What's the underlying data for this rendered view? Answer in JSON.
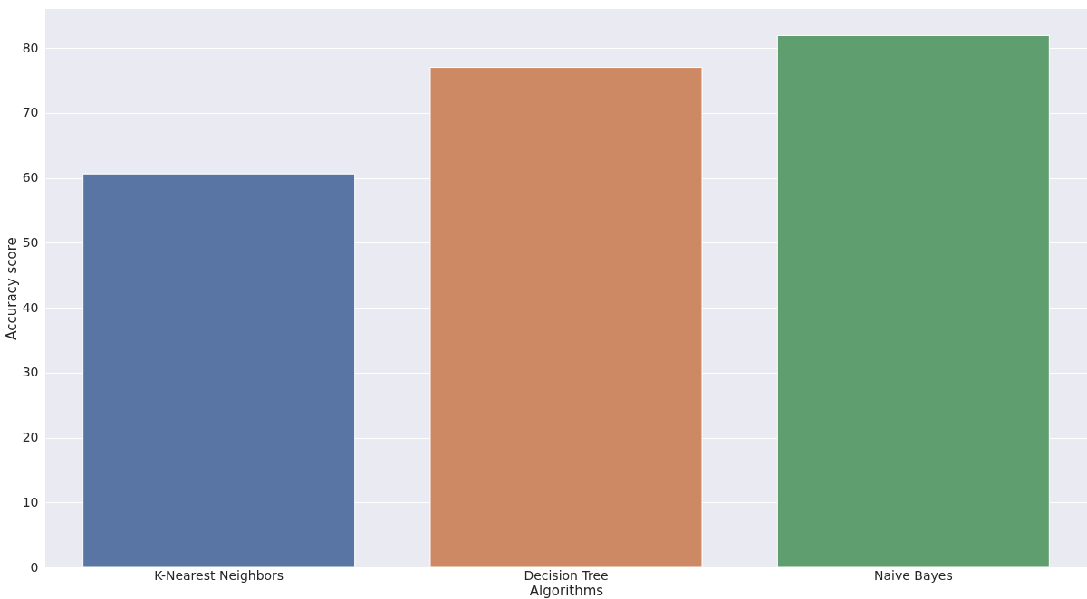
{
  "chart_data": {
    "type": "bar",
    "xlabel": "Algorithms",
    "ylabel": "Accuracy score",
    "categories": [
      "K-Nearest Neighbors",
      "Decision Tree",
      "Naive Bayes"
    ],
    "values": [
      60.6,
      77.0,
      81.9
    ],
    "colors": [
      "#5875a4",
      "#cc8963",
      "#5f9e6e"
    ],
    "ylim": [
      0,
      86
    ],
    "yticks": [
      0,
      10,
      20,
      30,
      40,
      50,
      60,
      70,
      80
    ],
    "grid": "y"
  }
}
